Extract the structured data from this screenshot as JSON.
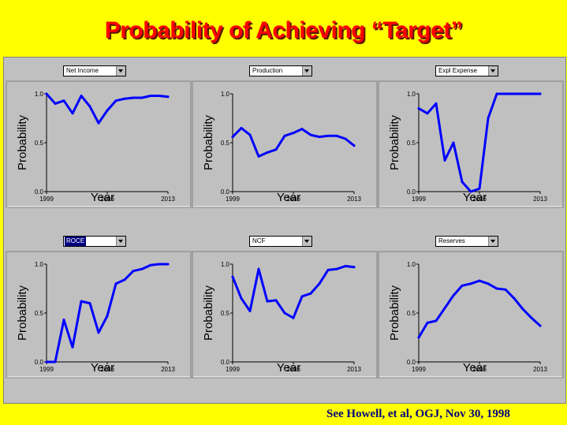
{
  "title": "Probability of Achieving “Target”",
  "citation": "See Howell, et al, OGJ, Nov 30, 1998",
  "series_color": "#0000ff",
  "panel_bg": "#c0c0c0",
  "chart_data": [
    {
      "type": "line",
      "selector": "Net Income",
      "selected": false,
      "xlabel": "Year",
      "ylabel": "Probability",
      "xlim": [
        1999,
        2013
      ],
      "ylim": [
        0,
        1
      ],
      "xticks": [
        "1999",
        "2006",
        "2013"
      ],
      "yticks": [
        "0.0",
        "0.5",
        "1.0"
      ],
      "x": [
        1999,
        2000,
        2001,
        2002,
        2003,
        2004,
        2005,
        2006,
        2007,
        2008,
        2009,
        2010,
        2011,
        2012,
        2013
      ],
      "y": [
        1.0,
        0.9,
        0.93,
        0.8,
        0.98,
        0.87,
        0.7,
        0.83,
        0.93,
        0.95,
        0.96,
        0.96,
        0.98,
        0.98,
        0.97
      ]
    },
    {
      "type": "line",
      "selector": "Production",
      "selected": false,
      "xlabel": "Year",
      "ylabel": "Probability",
      "xlim": [
        1999,
        2013
      ],
      "ylim": [
        0,
        1
      ],
      "xticks": [
        "1999",
        "2006",
        "2013"
      ],
      "yticks": [
        "0.0",
        "0.5",
        "1.0"
      ],
      "x": [
        1999,
        2000,
        2001,
        2002,
        2003,
        2004,
        2005,
        2006,
        2007,
        2008,
        2009,
        2010,
        2011,
        2012,
        2013
      ],
      "y": [
        0.56,
        0.65,
        0.58,
        0.36,
        0.4,
        0.43,
        0.57,
        0.6,
        0.64,
        0.58,
        0.56,
        0.57,
        0.57,
        0.54,
        0.47
      ]
    },
    {
      "type": "line",
      "selector": "Expl Expense",
      "selected": false,
      "xlabel": "Year",
      "ylabel": "Probability",
      "xlim": [
        1999,
        2013
      ],
      "ylim": [
        0,
        1
      ],
      "xticks": [
        "1999",
        "2006",
        "2013"
      ],
      "yticks": [
        "0.0",
        "0.5",
        "1.0"
      ],
      "x": [
        1999,
        2000,
        2001,
        2002,
        2003,
        2004,
        2005,
        2006,
        2007,
        2008,
        2009,
        2010,
        2011,
        2012,
        2013
      ],
      "y": [
        0.85,
        0.8,
        0.9,
        0.32,
        0.5,
        0.1,
        0.0,
        0.03,
        0.75,
        1.0,
        1.0,
        1.0,
        1.0,
        1.0,
        1.0
      ]
    },
    {
      "type": "line",
      "selector": "ROCE",
      "selected": true,
      "xlabel": "Year",
      "ylabel": "Probability",
      "xlim": [
        1999,
        2013
      ],
      "ylim": [
        0,
        1
      ],
      "xticks": [
        "1999",
        "2006",
        "2013"
      ],
      "yticks": [
        "0.0",
        "0.5",
        "1.0"
      ],
      "x": [
        1999,
        2000,
        2001,
        2002,
        2003,
        2004,
        2005,
        2006,
        2007,
        2008,
        2009,
        2010,
        2011,
        2012,
        2013
      ],
      "y": [
        0.0,
        0.0,
        0.43,
        0.15,
        0.62,
        0.6,
        0.3,
        0.47,
        0.8,
        0.84,
        0.93,
        0.95,
        0.99,
        1.0,
        1.0
      ]
    },
    {
      "type": "line",
      "selector": "NCF",
      "selected": false,
      "xlabel": "Year",
      "ylabel": "Probability",
      "xlim": [
        1999,
        2013
      ],
      "ylim": [
        0,
        1
      ],
      "xticks": [
        "1999",
        "2006",
        "2013"
      ],
      "yticks": [
        "0.0",
        "0.5",
        "1.0"
      ],
      "x": [
        1999,
        2000,
        2001,
        2002,
        2003,
        2004,
        2005,
        2006,
        2007,
        2008,
        2009,
        2010,
        2011,
        2012,
        2013
      ],
      "y": [
        0.87,
        0.65,
        0.52,
        0.95,
        0.62,
        0.63,
        0.5,
        0.45,
        0.67,
        0.7,
        0.8,
        0.94,
        0.95,
        0.98,
        0.97
      ]
    },
    {
      "type": "line",
      "selector": "Reserves",
      "selected": false,
      "xlabel": "Year",
      "ylabel": "Probability",
      "xlim": [
        1999,
        2013
      ],
      "ylim": [
        0,
        1
      ],
      "xticks": [
        "1999",
        "2006",
        "2013"
      ],
      "yticks": [
        "0.0",
        "0.5",
        "1.0"
      ],
      "x": [
        1999,
        2000,
        2001,
        2002,
        2003,
        2004,
        2005,
        2006,
        2007,
        2008,
        2009,
        2010,
        2011,
        2012,
        2013
      ],
      "y": [
        0.25,
        0.4,
        0.42,
        0.55,
        0.68,
        0.78,
        0.8,
        0.83,
        0.8,
        0.75,
        0.74,
        0.65,
        0.54,
        0.45,
        0.37
      ]
    }
  ]
}
